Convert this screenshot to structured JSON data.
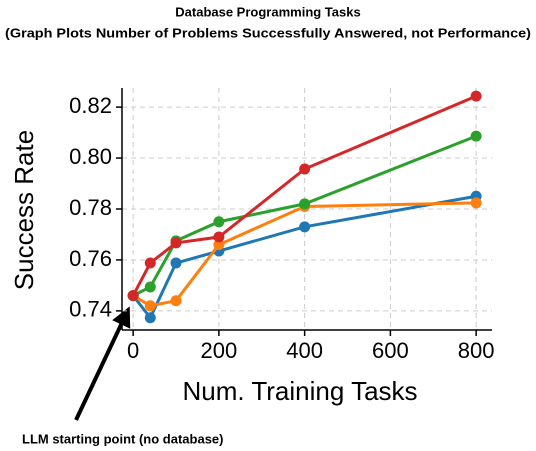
{
  "chart_data": {
    "type": "line",
    "title": "Database Programming Tasks",
    "subtitle": "(Graph Plots Number of Problems Successfully Answered, not Performance)",
    "x_label": "Num. Training Tasks",
    "y_label": "Success Rate",
    "annotation": "LLM starting point (no database)",
    "x": [
      0,
      40,
      100,
      200,
      400,
      800
    ],
    "series": [
      {
        "color": "#1f77b4",
        "values": [
          0.746,
          0.7373,
          0.7588,
          0.7635,
          0.773,
          0.785
        ]
      },
      {
        "color": "#ff7f0e",
        "values": [
          0.746,
          0.742,
          0.744,
          0.766,
          0.781,
          0.7824
        ]
      },
      {
        "color": "#2ca02c",
        "values": [
          0.746,
          0.7494,
          0.7675,
          0.775,
          0.782,
          0.8086
        ]
      },
      {
        "color": "#d62728",
        "values": [
          0.746,
          0.7588,
          0.7667,
          0.769,
          0.7957,
          0.8243
        ]
      }
    ],
    "xlim": [
      -26,
      837
    ],
    "xticks": [
      0,
      200,
      400,
      600,
      800
    ],
    "ylim": [
      0.7325,
      0.8275
    ],
    "yticks": [
      0.74,
      0.76,
      0.78,
      {
        "value": 0.8,
        "label": "0.80"
      },
      0.82
    ],
    "grid": true
  }
}
